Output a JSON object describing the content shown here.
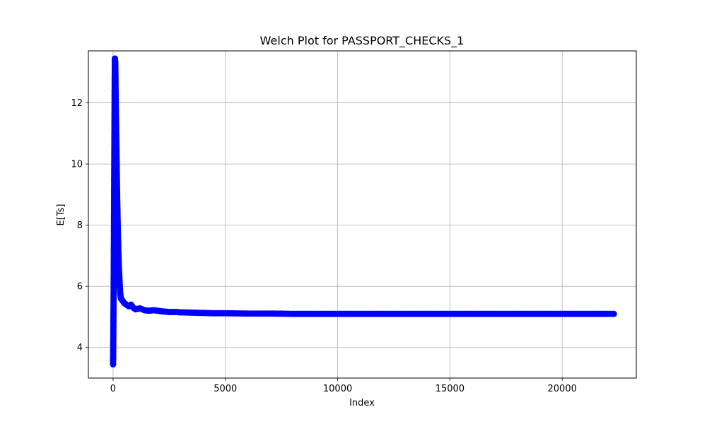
{
  "chart_data": {
    "type": "line",
    "title": "Welch Plot for PASSPORT_CHECKS_1",
    "xlabel": "Index",
    "ylabel": "E[Ts]",
    "xlim": [
      -1100,
      23300
    ],
    "ylim": [
      3.0,
      13.7
    ],
    "x_ticks": [
      0,
      5000,
      10000,
      15000,
      20000
    ],
    "x_tick_labels": [
      "0",
      "5000",
      "10000",
      "15000",
      "20000"
    ],
    "y_ticks": [
      4,
      6,
      8,
      10,
      12
    ],
    "y_tick_labels": [
      "4",
      "6",
      "8",
      "10",
      "12"
    ],
    "grid": true,
    "legend": "none",
    "marker": "circle",
    "series": [
      {
        "color": "#0000ff",
        "x": [
          0,
          10,
          20,
          30,
          40,
          50,
          60,
          70,
          80,
          100,
          120,
          140,
          160,
          180,
          200,
          220,
          240,
          260,
          280,
          300,
          320,
          350,
          400,
          450,
          500,
          600,
          700,
          800,
          900,
          1000,
          1200,
          1400,
          1600,
          1800,
          2000,
          2200,
          2500,
          2800,
          3000,
          3500,
          4000,
          4500,
          5000,
          6000,
          7000,
          8000,
          9000,
          10000,
          12000,
          14000,
          16000,
          18000,
          20000,
          22300
        ],
        "y": [
          3.45,
          4.3,
          5.35,
          6.5,
          8.0,
          9.6,
          11.0,
          12.5,
          13.45,
          13.3,
          12.0,
          11.0,
          10.0,
          9.0,
          8.3,
          7.6,
          7.0,
          6.6,
          6.3,
          6.0,
          5.75,
          5.6,
          5.55,
          5.5,
          5.45,
          5.4,
          5.35,
          5.4,
          5.3,
          5.25,
          5.28,
          5.22,
          5.2,
          5.22,
          5.2,
          5.18,
          5.16,
          5.16,
          5.15,
          5.14,
          5.13,
          5.12,
          5.12,
          5.11,
          5.11,
          5.1,
          5.1,
          5.1,
          5.1,
          5.1,
          5.1,
          5.1,
          5.1,
          5.1
        ]
      }
    ]
  }
}
